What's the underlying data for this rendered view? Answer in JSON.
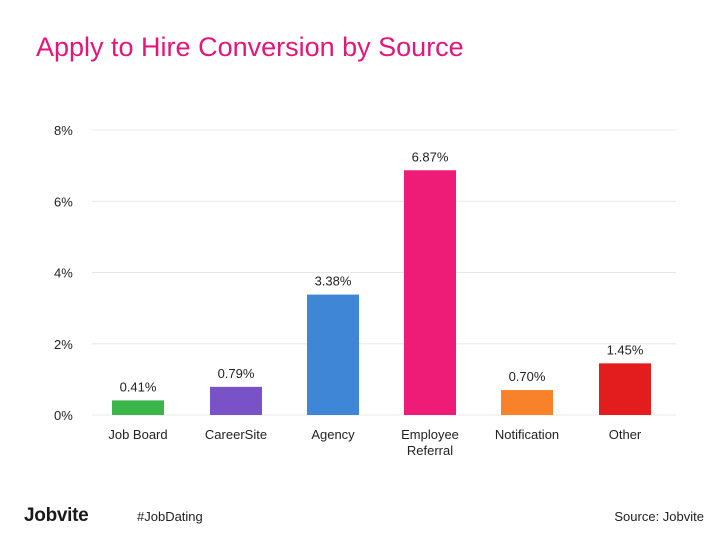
{
  "slide": {
    "logo": "Jobvite",
    "hashtag": "#JobDating",
    "source": "Source: Jobvite"
  },
  "colors": {
    "title": "#e5157a",
    "grid": "#e8e8e8",
    "axis_text": "#222222"
  },
  "chart_data": {
    "type": "bar",
    "title": "Apply to Hire Conversion by Source",
    "xlabel": "",
    "ylabel": "",
    "ylim": [
      0,
      8
    ],
    "yticks": [
      0,
      2,
      4,
      6,
      8
    ],
    "ytick_labels": [
      "0%",
      "2%",
      "4%",
      "6%",
      "8%"
    ],
    "grid": true,
    "categories": [
      [
        "Job Board"
      ],
      [
        "CareerSite"
      ],
      [
        "Agency"
      ],
      [
        "Employee",
        "Referral"
      ],
      [
        "Notification"
      ],
      [
        "Other"
      ]
    ],
    "values": [
      0.41,
      0.79,
      3.38,
      6.87,
      0.7,
      1.45
    ],
    "value_labels": [
      "0.41%",
      "0.79%",
      "3.38%",
      "6.87%",
      "0.70%",
      "1.45%"
    ],
    "bar_colors": [
      "#3bb54a",
      "#7a52c7",
      "#3f86d6",
      "#ee1c76",
      "#f7822a",
      "#e31d1d"
    ]
  }
}
